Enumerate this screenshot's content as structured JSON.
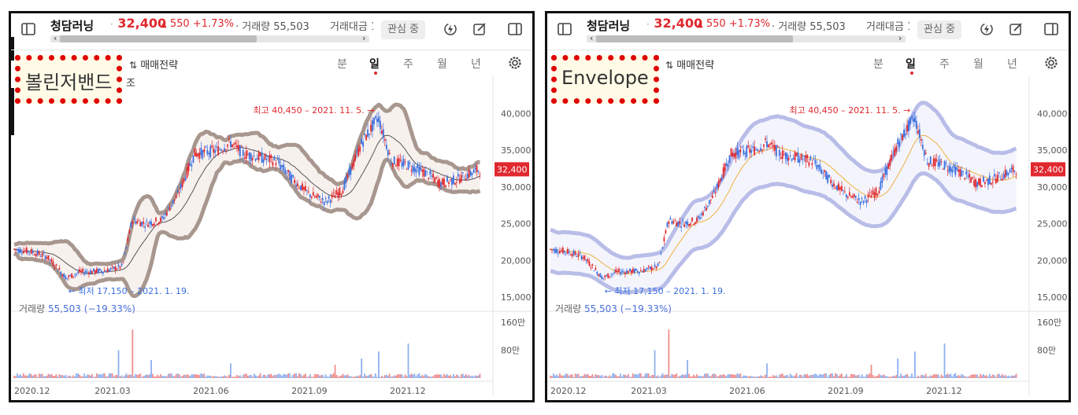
{
  "header": {
    "stock_name": "청담러닝",
    "separator": "·",
    "price": "32,400",
    "change_arrow": "▲",
    "change_value": "550",
    "change_pct": "+1.73%",
    "volume_text": "· 거래량 55,503",
    "amount_text": "거래대금 1",
    "watch_button": "관심 중"
  },
  "toolbar": {
    "strategy_label": "매매전략",
    "periods": [
      "분",
      "일",
      "주",
      "월",
      "년"
    ],
    "active_period": "일"
  },
  "colors": {
    "up": "#e0282e",
    "down": "#3a6fe0",
    "vol_up": "#ef8f8f",
    "vol_down": "#8fb0ef",
    "bollinger_band": "#a8978f",
    "envelope_band": "#b8bde8",
    "ma_left": "#555555",
    "ma_right": "#f0b040"
  },
  "icons": [
    "sidebar-toggle-icon",
    "lightning-icon",
    "edit-icon",
    "panel-icon",
    "sort-icon",
    "gear-icon"
  ],
  "panels": [
    {
      "indicator_label": "볼린저밴드",
      "indicator_suffix": "조",
      "band_type": "bollinger",
      "band_color": "#a8978f",
      "ma_color": "#555555"
    },
    {
      "indicator_label": "Envelope",
      "indicator_suffix": "",
      "band_type": "envelope",
      "band_color": "#b8bde8",
      "ma_color": "#f0b040"
    }
  ],
  "chart_data": {
    "type": "candlestick",
    "y_ticks": [
      "40,000",
      "35,000",
      "30,000",
      "25,000",
      "20,000",
      "15,000"
    ],
    "y_tick_values": [
      40000,
      35000,
      30000,
      25000,
      20000,
      15000
    ],
    "ylim": [
      13500,
      44000
    ],
    "x_tick_labels": [
      "2020.12",
      "2021.03",
      "2021.06",
      "2021.09",
      "2021.12"
    ],
    "x_tick_months": [
      0,
      3,
      6,
      9,
      12
    ],
    "months_span": 14.5,
    "current_price_label": "32,400",
    "current_price": 32400,
    "max_annotation": "최고 40,450 – 2021. 11. 5. →",
    "max_value": 40450,
    "max_month": 11.1,
    "min_annotation": "← 최저 17,150 – 2021. 1. 19.",
    "min_value": 17150,
    "min_month": 1.6,
    "close_keypoints": [
      [
        0,
        21500
      ],
      [
        0.5,
        21200
      ],
      [
        1.0,
        20500
      ],
      [
        1.6,
        17600
      ],
      [
        2.0,
        18400
      ],
      [
        2.8,
        18600
      ],
      [
        3.3,
        19200
      ],
      [
        3.6,
        25500
      ],
      [
        4.0,
        25000
      ],
      [
        4.5,
        25500
      ],
      [
        5.0,
        29000
      ],
      [
        5.5,
        34500
      ],
      [
        6.2,
        35000
      ],
      [
        6.6,
        36000
      ],
      [
        7.0,
        34500
      ],
      [
        7.5,
        34000
      ],
      [
        8.0,
        33500
      ],
      [
        8.5,
        31000
      ],
      [
        9.0,
        29000
      ],
      [
        9.5,
        28000
      ],
      [
        10.0,
        29500
      ],
      [
        10.6,
        36000
      ],
      [
        11.1,
        39500
      ],
      [
        11.5,
        33500
      ],
      [
        12.0,
        33000
      ],
      [
        12.5,
        32000
      ],
      [
        13.0,
        30500
      ],
      [
        13.5,
        31000
      ],
      [
        14.2,
        32400
      ]
    ],
    "volume_label": "거래량",
    "volume_value": "55,503 (−19.33%)",
    "volume_ticks": [
      "160만",
      "80만"
    ],
    "volume_tick_values": [
      1600000,
      800000
    ],
    "volume_max": 1600000,
    "volume_spikes": [
      [
        3.6,
        1390000
      ],
      [
        3.2,
        800000
      ],
      [
        12.0,
        990000
      ],
      [
        11.1,
        760000
      ],
      [
        4.2,
        520000
      ],
      [
        10.6,
        560000
      ],
      [
        6.6,
        420000
      ],
      [
        9.8,
        380000
      ]
    ]
  }
}
